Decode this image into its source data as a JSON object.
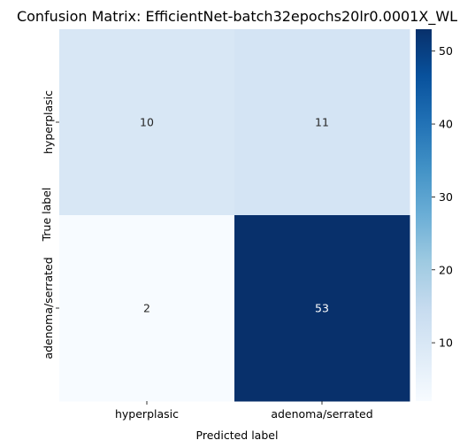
{
  "chart_data": {
    "type": "heatmap",
    "title": "Confusion Matrix: EfficientNet-batch32epochs20lr0.0001X_WL",
    "xlabel": "Predicted label",
    "ylabel": "True label",
    "x_categories": [
      "hyperplasic",
      "adenoma/serrated"
    ],
    "y_categories": [
      "hyperplasic",
      "adenoma/serrated"
    ],
    "values": [
      [
        10,
        11
      ],
      [
        2,
        53
      ]
    ],
    "colormap": "Blues",
    "colorbar": {
      "min": 2,
      "max": 53,
      "ticks": [
        10,
        20,
        30,
        40,
        50
      ]
    }
  }
}
